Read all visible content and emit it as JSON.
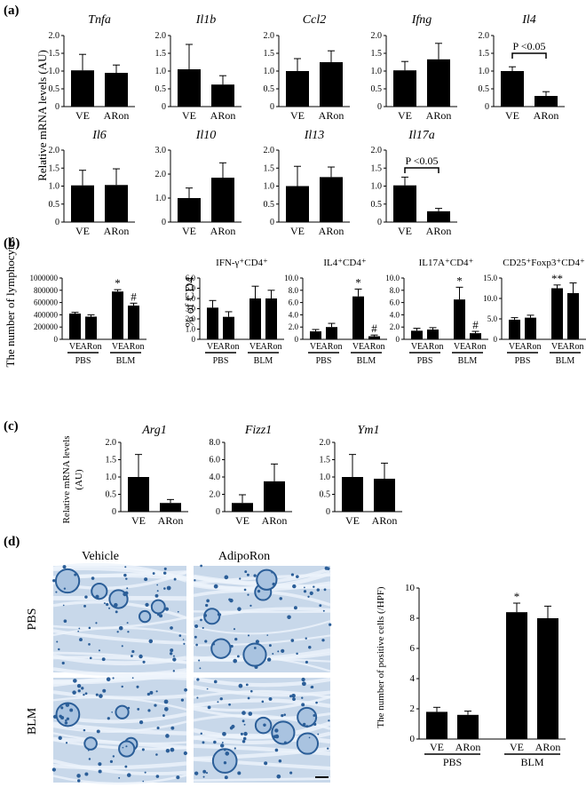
{
  "panels": {
    "a": "(a)",
    "b": "(b)",
    "c": "(c)",
    "d": "(d)"
  },
  "labels": {
    "a_ylabel": "Relative mRNA levels (AU)",
    "b_ylabel_count": "The number of lymphocytes",
    "b_ylabel_pct": "% of CD4",
    "c_ylabel_line1": "Relative mRNA levels",
    "c_ylabel_line2": "(AU)",
    "d_ylabel": "The number of positive cells (/HPF)",
    "vehicle": "Vehicle",
    "adiporon": "AdipoRon",
    "pbs": "PBS",
    "blm": "BLM"
  },
  "colors": {
    "bar": "#000000",
    "axis": "#000000",
    "tissue_bg": "#c8d8ea",
    "tissue_stain": "#2b5e98"
  },
  "chart_data": [
    {
      "id": "a_Tnfa",
      "type": "bar",
      "title": "Tnfa",
      "categories": [
        "VE",
        "ARon"
      ],
      "values": [
        1.02,
        0.95
      ],
      "errors": [
        0.45,
        0.22
      ],
      "ylim": [
        0,
        2.0
      ],
      "yticks": [
        "0",
        "0.5",
        "1.0",
        "1.5",
        "2.0"
      ]
    },
    {
      "id": "a_Il1b",
      "type": "bar",
      "title": "Il1b",
      "categories": [
        "VE",
        "ARon"
      ],
      "values": [
        1.05,
        0.62
      ],
      "errors": [
        0.7,
        0.25
      ],
      "ylim": [
        0,
        2.0
      ],
      "yticks": [
        "0",
        "0.5",
        "1.0",
        "1.5",
        "2.0"
      ]
    },
    {
      "id": "a_Ccl2",
      "type": "bar",
      "title": "Ccl2",
      "categories": [
        "VE",
        "ARon"
      ],
      "values": [
        1.0,
        1.25
      ],
      "errors": [
        0.35,
        0.32
      ],
      "ylim": [
        0,
        2.0
      ],
      "yticks": [
        "0",
        "0.5",
        "1.0",
        "1.5",
        "2.0"
      ]
    },
    {
      "id": "a_Ifng",
      "type": "bar",
      "title": "Ifng",
      "categories": [
        "VE",
        "ARon"
      ],
      "values": [
        1.02,
        1.33
      ],
      "errors": [
        0.25,
        0.45
      ],
      "ylim": [
        0,
        2.0
      ],
      "yticks": [
        "0",
        "0.5",
        "1.0",
        "1.5",
        "2.0"
      ]
    },
    {
      "id": "a_Il4",
      "type": "bar",
      "title": "Il4",
      "categories": [
        "VE",
        "ARon"
      ],
      "values": [
        1.0,
        0.3
      ],
      "errors": [
        0.12,
        0.12
      ],
      "ylim": [
        0,
        2.0
      ],
      "yticks": [
        "0",
        "0.5",
        "1.0",
        "1.5",
        "2.0"
      ],
      "annotation": "P <0.05"
    },
    {
      "id": "a_Il6",
      "type": "bar",
      "title": "Il6",
      "categories": [
        "VE",
        "ARon"
      ],
      "values": [
        1.02,
        1.03
      ],
      "errors": [
        0.42,
        0.45
      ],
      "ylim": [
        0,
        2.0
      ],
      "yticks": [
        "0",
        "0.5",
        "1.0",
        "1.5",
        "2.0"
      ]
    },
    {
      "id": "a_Il10",
      "type": "bar",
      "title": "Il10",
      "categories": [
        "VE",
        "ARon"
      ],
      "values": [
        1.0,
        1.85
      ],
      "errors": [
        0.42,
        0.62
      ],
      "ylim": [
        0,
        3.0
      ],
      "yticks": [
        "0",
        "1.0",
        "2.0",
        "3.0"
      ]
    },
    {
      "id": "a_Il13",
      "type": "bar",
      "title": "Il13",
      "categories": [
        "VE",
        "ARon"
      ],
      "values": [
        1.0,
        1.25
      ],
      "errors": [
        0.55,
        0.28
      ],
      "ylim": [
        0,
        2.0
      ],
      "yticks": [
        "0",
        "0.5",
        "1.0",
        "1.5",
        "2.0"
      ]
    },
    {
      "id": "a_Il17a",
      "type": "bar",
      "title": "Il17a",
      "categories": [
        "VE",
        "ARon"
      ],
      "values": [
        1.02,
        0.3
      ],
      "errors": [
        0.23,
        0.08
      ],
      "ylim": [
        0,
        2.0
      ],
      "yticks": [
        "0",
        "0.5",
        "1.0",
        "1.5",
        "2.0"
      ],
      "annotation": "P <0.05"
    },
    {
      "id": "b_count",
      "type": "bar",
      "title": "",
      "categories": [
        "VE",
        "ARon",
        "VE",
        "ARon"
      ],
      "groups": [
        "PBS",
        "BLM"
      ],
      "values": [
        420000,
        370000,
        780000,
        550000
      ],
      "errors": [
        20000,
        30000,
        30000,
        40000
      ],
      "ylim": [
        0,
        1000000
      ],
      "yticks": [
        "0",
        "200000",
        "400000",
        "600000",
        "800000",
        "1000000"
      ],
      "marks": [
        "",
        "",
        "*",
        "#"
      ]
    },
    {
      "id": "b_ifng",
      "type": "bar",
      "title": "IFN-γ⁺CD4⁺",
      "categories": [
        "VE",
        "ARon",
        "VE",
        "ARon"
      ],
      "groups": [
        "PBS",
        "BLM"
      ],
      "values": [
        3.1,
        2.2,
        4.0,
        4.0
      ],
      "errors": [
        0.7,
        0.5,
        1.2,
        0.8
      ],
      "ylim": [
        0,
        6.0
      ],
      "yticks": [
        "0",
        "1.0",
        "2.0",
        "3.0",
        "4.0",
        "5.0",
        "6.0"
      ],
      "marks": [
        "",
        "",
        "",
        ""
      ]
    },
    {
      "id": "b_il4",
      "type": "bar",
      "title": "IL4⁺CD4⁺",
      "categories": [
        "VE",
        "ARon",
        "VE",
        "ARon"
      ],
      "groups": [
        "PBS",
        "BLM"
      ],
      "values": [
        1.3,
        2.0,
        7.0,
        0.5
      ],
      "errors": [
        0.3,
        0.6,
        1.2,
        0.2
      ],
      "ylim": [
        0,
        10.0
      ],
      "yticks": [
        "0",
        "2.0",
        "4.0",
        "6.0",
        "8.0",
        "10.0"
      ],
      "marks": [
        "",
        "",
        "*",
        "#"
      ]
    },
    {
      "id": "b_il17a",
      "type": "bar",
      "title": "IL17A⁺CD4⁺",
      "categories": [
        "VE",
        "ARon",
        "VE",
        "ARon"
      ],
      "groups": [
        "PBS",
        "BLM"
      ],
      "values": [
        1.4,
        1.6,
        6.5,
        1.0
      ],
      "errors": [
        0.4,
        0.3,
        2.0,
        0.3
      ],
      "ylim": [
        0,
        10.0
      ],
      "yticks": [
        "0",
        "2.0",
        "4.0",
        "6.0",
        "8.0",
        "10.0"
      ],
      "marks": [
        "",
        "",
        "*",
        "#"
      ]
    },
    {
      "id": "b_treg",
      "type": "bar",
      "title": "CD25⁺Foxp3⁺CD4⁺",
      "categories": [
        "VE",
        "ARon",
        "VE",
        "ARon"
      ],
      "groups": [
        "PBS",
        "BLM"
      ],
      "values": [
        4.8,
        5.3,
        12.5,
        11.3
      ],
      "errors": [
        0.5,
        0.6,
        0.8,
        2.5
      ],
      "ylim": [
        0,
        15.0
      ],
      "yticks": [
        "0",
        "5.0",
        "10.0",
        "15.0"
      ],
      "marks": [
        "",
        "",
        "**",
        ""
      ]
    },
    {
      "id": "c_Arg1",
      "type": "bar",
      "title": "Arg1",
      "categories": [
        "VE",
        "ARon"
      ],
      "values": [
        1.0,
        0.25
      ],
      "errors": [
        0.65,
        0.1
      ],
      "ylim": [
        0,
        2.0
      ],
      "yticks": [
        "0",
        "0.5",
        "1.0",
        "1.5",
        "2.0"
      ]
    },
    {
      "id": "c_Fizz1",
      "type": "bar",
      "title": "Fizz1",
      "categories": [
        "VE",
        "ARon"
      ],
      "values": [
        1.0,
        3.5
      ],
      "errors": [
        0.95,
        2.0
      ],
      "ylim": [
        0,
        8.0
      ],
      "yticks": [
        "0",
        "2.0",
        "4.0",
        "6.0",
        "8.0"
      ]
    },
    {
      "id": "c_Ym1",
      "type": "bar",
      "title": "Ym1",
      "categories": [
        "VE",
        "ARon"
      ],
      "values": [
        1.0,
        0.95
      ],
      "errors": [
        0.65,
        0.45
      ],
      "ylim": [
        0,
        2.0
      ],
      "yticks": [
        "0",
        "0.5",
        "1.0",
        "1.5",
        "2.0"
      ]
    },
    {
      "id": "d_positive",
      "type": "bar",
      "title": "",
      "categories": [
        "VE",
        "ARon",
        "VE",
        "ARon"
      ],
      "groups": [
        "PBS",
        "BLM"
      ],
      "values": [
        1.8,
        1.6,
        8.4,
        8.0
      ],
      "errors": [
        0.3,
        0.25,
        0.6,
        0.8
      ],
      "ylim": [
        0,
        10
      ],
      "yticks": [
        "0",
        "2",
        "4",
        "6",
        "8",
        "10"
      ],
      "marks": [
        "",
        "",
        "*",
        ""
      ]
    }
  ]
}
